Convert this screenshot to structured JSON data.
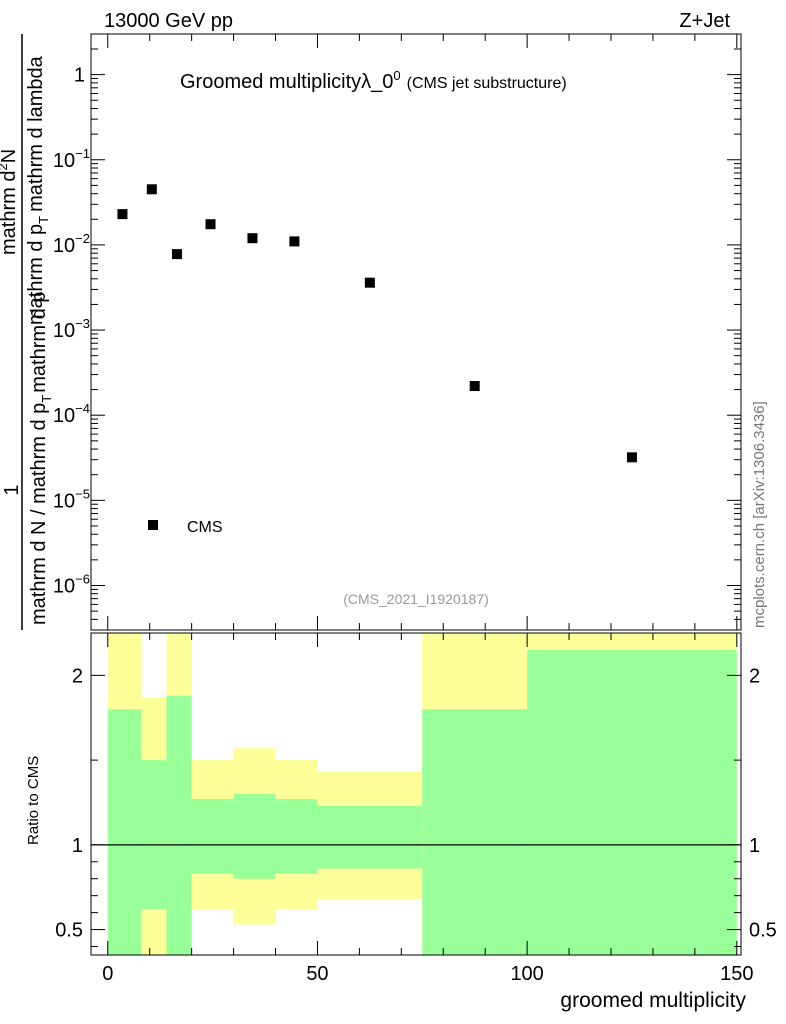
{
  "header": {
    "left": "13000 GeV pp",
    "right": "Z+Jet"
  },
  "side_credit": "mcplots.cern.ch [arXiv:1306.3436]",
  "chart_data": [
    {
      "type": "scatter",
      "title_main": "Groomed multiplicity",
      "title_sym": "λ_0",
      "title_sup": "0",
      "title_note": "(CMS jet substructure)",
      "analysis_id": "(CMS_2021_I1920187)",
      "ylabel_parts": {
        "one": "1",
        "den": "mathrm d N / mathrm d p",
        "den_tail": "mathrm d p",
        "num": "mathrm d",
        "num_sup": "2",
        "num_tail": "N",
        "mid": "mathrm d p",
        "lam": "mathrm d lambda",
        "sub": "T"
      },
      "yscale": "log",
      "ylim": [
        3e-07,
        3
      ],
      "xlim": [
        -4,
        151
      ],
      "y_ticks": [
        {
          "value": 1,
          "label": "1",
          "sup": ""
        },
        {
          "value": 0.1,
          "label": "10",
          "sup": "−1"
        },
        {
          "value": 0.01,
          "label": "10",
          "sup": "−2"
        },
        {
          "value": 0.001,
          "label": "10",
          "sup": "−3"
        },
        {
          "value": 0.0001,
          "label": "10",
          "sup": "−4"
        },
        {
          "value": 1e-05,
          "label": "10",
          "sup": "−5"
        },
        {
          "value": 1e-06,
          "label": "10",
          "sup": "−6"
        }
      ],
      "series": [
        {
          "name": "CMS",
          "marker": "square",
          "color": "#000000",
          "x": [
            3.5,
            10.5,
            16.5,
            24.5,
            34.5,
            44.5,
            62.5,
            87.5,
            125
          ],
          "y": [
            0.023,
            0.045,
            0.0078,
            0.0175,
            0.012,
            0.011,
            0.0036,
            0.00022,
            3.2e-05
          ]
        }
      ],
      "legend": {
        "label": "CMS",
        "position": "bottom-left"
      }
    },
    {
      "type": "area",
      "ylabel": "Ratio to CMS",
      "xlabel": "groomed multiplicity",
      "xlim": [
        -4,
        151
      ],
      "ylim": [
        0.35,
        2.25
      ],
      "x_ticks": [
        0,
        50,
        100,
        150
      ],
      "y_ticks": [
        {
          "value": 0.5,
          "label": "0.5"
        },
        {
          "value": 1,
          "label": "1"
        },
        {
          "value": 2,
          "label": "2"
        }
      ],
      "reference_line": 1,
      "bins": [
        {
          "x0": 0,
          "x1": 8,
          "y2lo": 0.35,
          "y1lo": 0.35,
          "y1hi": 1.8,
          "y2hi": 2.25
        },
        {
          "x0": 8,
          "x1": 14,
          "y2lo": 0.35,
          "y1lo": 0.62,
          "y1hi": 1.5,
          "y2hi": 1.87
        },
        {
          "x0": 14,
          "x1": 20,
          "y2lo": 0.35,
          "y1lo": 0.35,
          "y1hi": 1.88,
          "y2hi": 2.25
        },
        {
          "x0": 20,
          "x1": 30,
          "y2lo": 0.62,
          "y1lo": 0.83,
          "y1hi": 1.27,
          "y2hi": 1.5
        },
        {
          "x0": 30,
          "x1": 40,
          "y2lo": 0.53,
          "y1lo": 0.8,
          "y1hi": 1.3,
          "y2hi": 1.57
        },
        {
          "x0": 40,
          "x1": 50,
          "y2lo": 0.62,
          "y1lo": 0.83,
          "y1hi": 1.27,
          "y2hi": 1.5
        },
        {
          "x0": 50,
          "x1": 75,
          "y2lo": 0.68,
          "y1lo": 0.86,
          "y1hi": 1.23,
          "y2hi": 1.43
        },
        {
          "x0": 75,
          "x1": 100,
          "y2lo": 0.35,
          "y1lo": 0.35,
          "y1hi": 1.8,
          "y2hi": 2.25
        },
        {
          "x0": 100,
          "x1": 150,
          "y2lo": 0.35,
          "y1lo": 0.35,
          "y1hi": 2.15,
          "y2hi": 2.25
        }
      ],
      "colors": {
        "band_inner": "#99ff99",
        "band_outer": "#ffff99"
      }
    }
  ]
}
